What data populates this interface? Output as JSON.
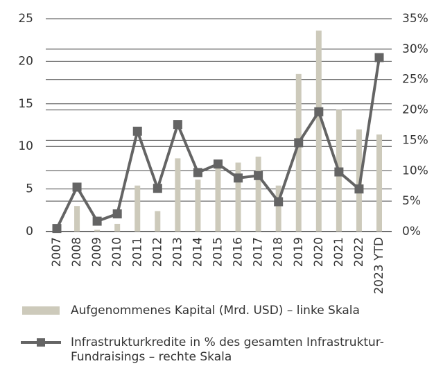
{
  "chart_data": {
    "type": "bar-line",
    "categories": [
      "2007",
      "2008",
      "2009",
      "2010",
      "2011",
      "2012",
      "2013",
      "2014",
      "2015",
      "2016",
      "2017",
      "2018",
      "2019",
      "2020",
      "2021",
      "2022",
      "2023 YTD"
    ],
    "series": [
      {
        "name": "Aufgenommenes Kapital (Mrd. USD) – linke Skala",
        "type": "bar",
        "color": "#cdcabb",
        "values": [
          0,
          3.0,
          0.2,
          0.9,
          5.4,
          2.4,
          8.6,
          6.1,
          7.7,
          8.1,
          8.8,
          5.4,
          18.5,
          23.6,
          14.3,
          12.0,
          11.4
        ]
      },
      {
        "name": "Infrastrukturkredite in % des gesamten Infrastruktur-Fundraisings – rechte Skala",
        "type": "line",
        "color": "#646464",
        "axis": "y2",
        "values": [
          0.5,
          7.3,
          1.7,
          2.9,
          16.5,
          7.1,
          17.6,
          9.7,
          11.1,
          8.8,
          9.2,
          4.9,
          14.6,
          19.7,
          9.8,
          7.0,
          28.6
        ]
      }
    ],
    "ylim": [
      0,
      25
    ],
    "yticks": [
      0,
      5,
      10,
      15,
      20,
      25
    ],
    "y2lim": [
      0,
      35
    ],
    "y2ticks": [
      {
        "value": 0,
        "label": "0%"
      },
      {
        "value": 5,
        "label": "5%"
      },
      {
        "value": 10,
        "label": "10%"
      },
      {
        "value": 15,
        "label": "15%"
      },
      {
        "value": 20,
        "label": "20%"
      },
      {
        "value": 25,
        "label": "25%"
      },
      {
        "value": 30,
        "label": "30%"
      },
      {
        "value": 35,
        "label": "35%"
      }
    ],
    "grid": true
  }
}
